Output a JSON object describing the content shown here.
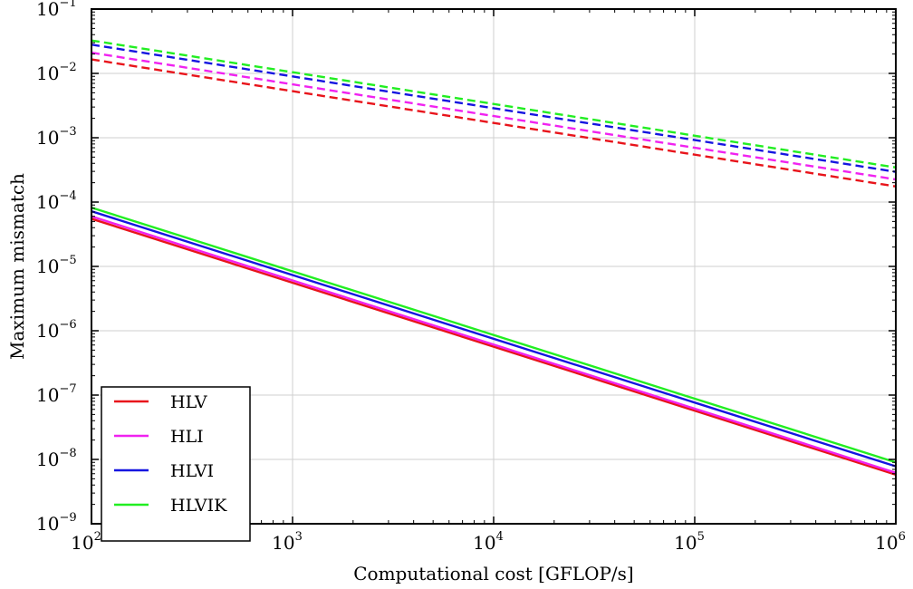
{
  "chart_data": {
    "type": "line",
    "xlabel": "Computational cost [GFLOP/s]",
    "ylabel": "Maximum mismatch",
    "xscale": "log",
    "yscale": "log",
    "xlim": [
      100,
      1000000
    ],
    "ylim": [
      1e-09,
      0.1
    ],
    "grid": true,
    "legend_position": "bottom-left",
    "x_ticks": [
      {
        "base": "10",
        "exp": "2",
        "value": 100
      },
      {
        "base": "10",
        "exp": "3",
        "value": 1000
      },
      {
        "base": "10",
        "exp": "4",
        "value": 10000
      },
      {
        "base": "10",
        "exp": "5",
        "value": 100000
      },
      {
        "base": "10",
        "exp": "6",
        "value": 1000000
      }
    ],
    "y_ticks": [
      {
        "base": "10",
        "exp": "−9",
        "value": 1e-09
      },
      {
        "base": "10",
        "exp": "−8",
        "value": 1e-08
      },
      {
        "base": "10",
        "exp": "−7",
        "value": 1e-07
      },
      {
        "base": "10",
        "exp": "−6",
        "value": 1e-06
      },
      {
        "base": "10",
        "exp": "−5",
        "value": 1e-05
      },
      {
        "base": "10",
        "exp": "−4",
        "value": 0.0001
      },
      {
        "base": "10",
        "exp": "−3",
        "value": 0.001
      },
      {
        "base": "10",
        "exp": "−2",
        "value": 0.01
      },
      {
        "base": "10",
        "exp": "−1",
        "value": 0.1
      }
    ],
    "series": [
      {
        "name": "HLV",
        "color": "#e8141b",
        "style": "solid",
        "x": [
          100,
          1000000
        ],
        "y": [
          5.5e-05,
          5.8e-09
        ]
      },
      {
        "name": "HLI",
        "color": "#f022f0",
        "style": "solid",
        "x": [
          100,
          1000000
        ],
        "y": [
          6e-05,
          6.2e-09
        ]
      },
      {
        "name": "HLVI",
        "color": "#1515e0",
        "style": "solid",
        "x": [
          100,
          1000000
        ],
        "y": [
          7.2e-05,
          7.8e-09
        ]
      },
      {
        "name": "HLVIK",
        "color": "#22ee22",
        "style": "solid",
        "x": [
          100,
          1000000
        ],
        "y": [
          8.2e-05,
          9e-09
        ]
      },
      {
        "color": "#e8141b",
        "style": "dashed",
        "x": [
          100,
          1000000
        ],
        "y": [
          0.0165,
          0.000175
        ]
      },
      {
        "color": "#f022f0",
        "style": "dashed",
        "x": [
          100,
          1000000
        ],
        "y": [
          0.021,
          0.000225
        ]
      },
      {
        "color": "#1515e0",
        "style": "dashed",
        "x": [
          100,
          1000000
        ],
        "y": [
          0.028,
          0.000295
        ]
      },
      {
        "color": "#22ee22",
        "style": "dashed",
        "x": [
          100,
          1000000
        ],
        "y": [
          0.0325,
          0.000345
        ]
      }
    ]
  }
}
